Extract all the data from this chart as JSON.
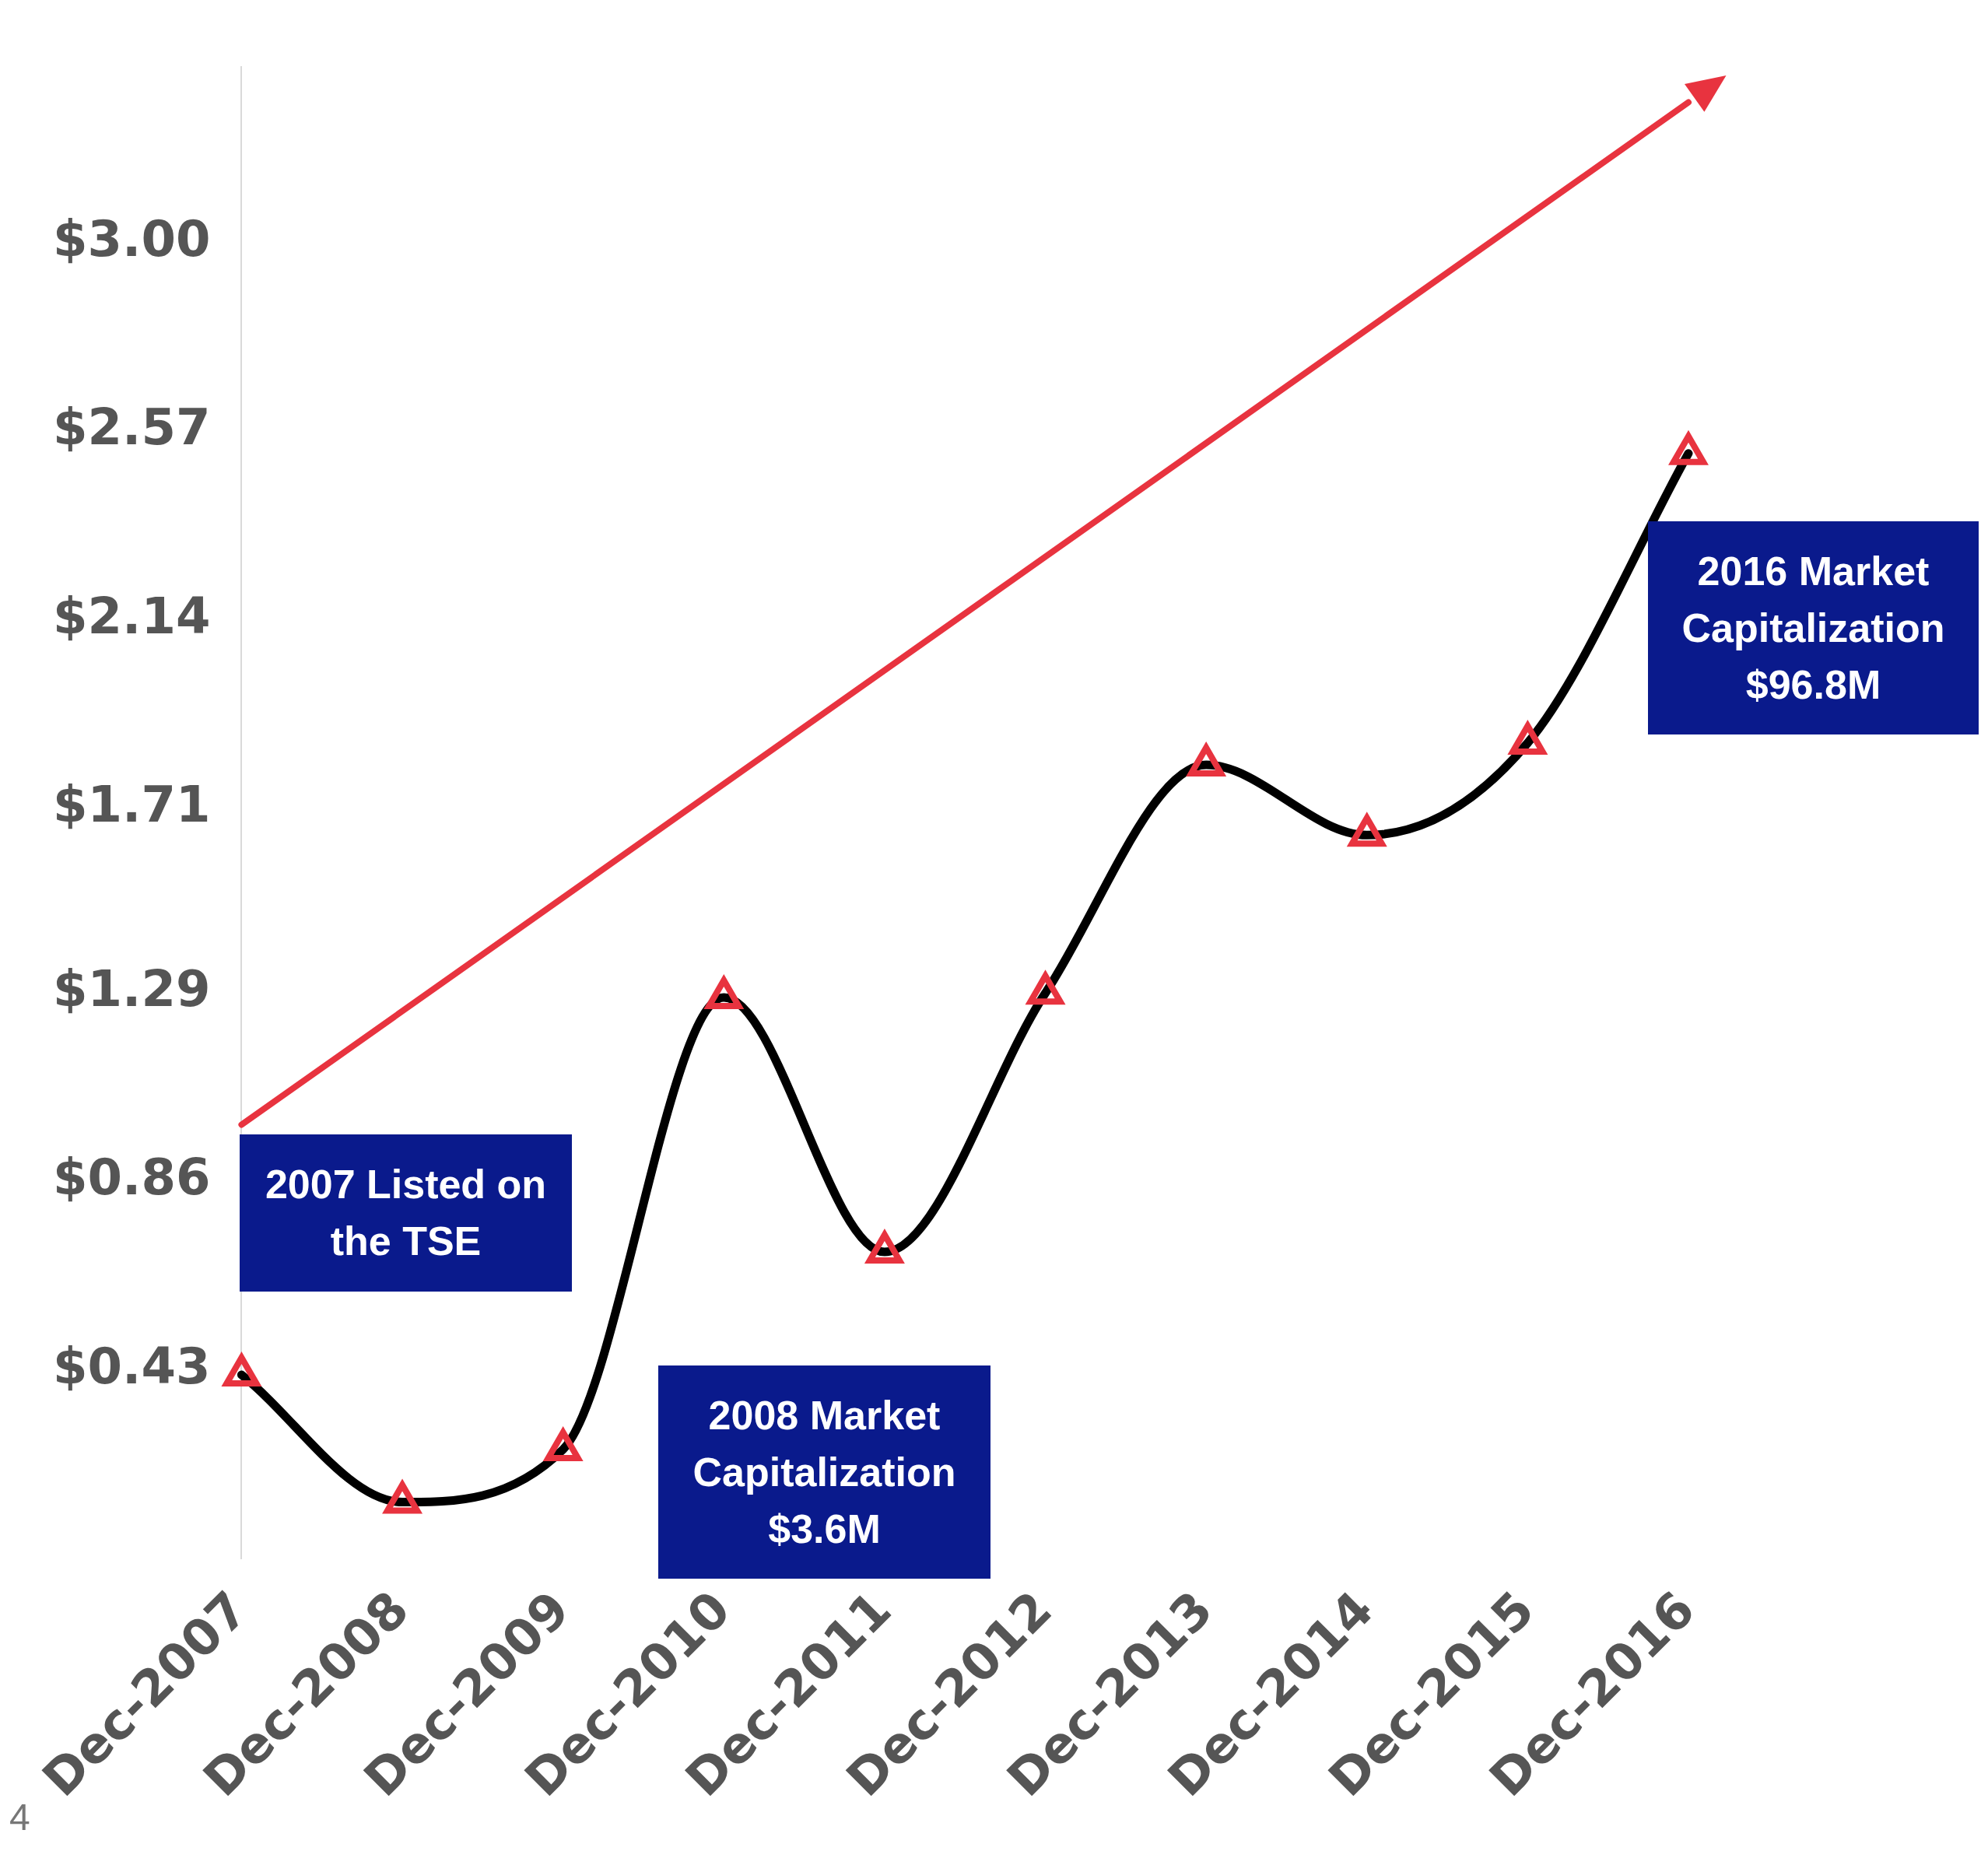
{
  "chart_data": {
    "type": "line",
    "categories": [
      "Dec-2007",
      "Dec-2008",
      "Dec-2009",
      "Dec-2010",
      "Dec-2011",
      "Dec-2012",
      "Dec-2013",
      "Dec-2014",
      "Dec-2015",
      "Dec-2016"
    ],
    "series": [
      {
        "color": "#000000",
        "colors": [
          "#e8333f",
          "#e8333f",
          "#e8333f",
          "#e8333f",
          "#e8333f",
          "#e8333f",
          "#e8333f",
          "#e8333f",
          "#e8333f",
          "#e8333f"
        ],
        "values": [
          0.42,
          0.13,
          0.25,
          1.28,
          0.7,
          1.29,
          1.81,
          1.65,
          1.86,
          2.52
        ]
      },
      {
        "type": "line",
        "color": "#e8333f",
        "x": [
          "Dec-2007",
          "Dec-2016"
        ],
        "values": [
          0.99,
          3.32
        ],
        "marker": "none"
      }
    ],
    "ylim": [
      0,
      3.4
    ],
    "yticks": [
      {
        "value": 0.43,
        "label": "$0.43"
      },
      {
        "value": 0.86,
        "label": "$0.86"
      },
      {
        "value": 1.29,
        "label": "$1.29"
      },
      {
        "value": 1.71,
        "label": "$1.71"
      },
      {
        "value": 2.14,
        "label": "$2.14"
      },
      {
        "value": 2.57,
        "label": "$2.57"
      },
      {
        "value": 3.0,
        "label": "$3.00"
      }
    ],
    "grid": false,
    "legend": false,
    "marker": "triangle",
    "line_style": "solid",
    "annotations": [
      "2007 Listed on the TSE",
      "2008 Market Capitalization $3.6M",
      "2016 Market Capitalization $96.8M",
      "4"
    ]
  }
}
